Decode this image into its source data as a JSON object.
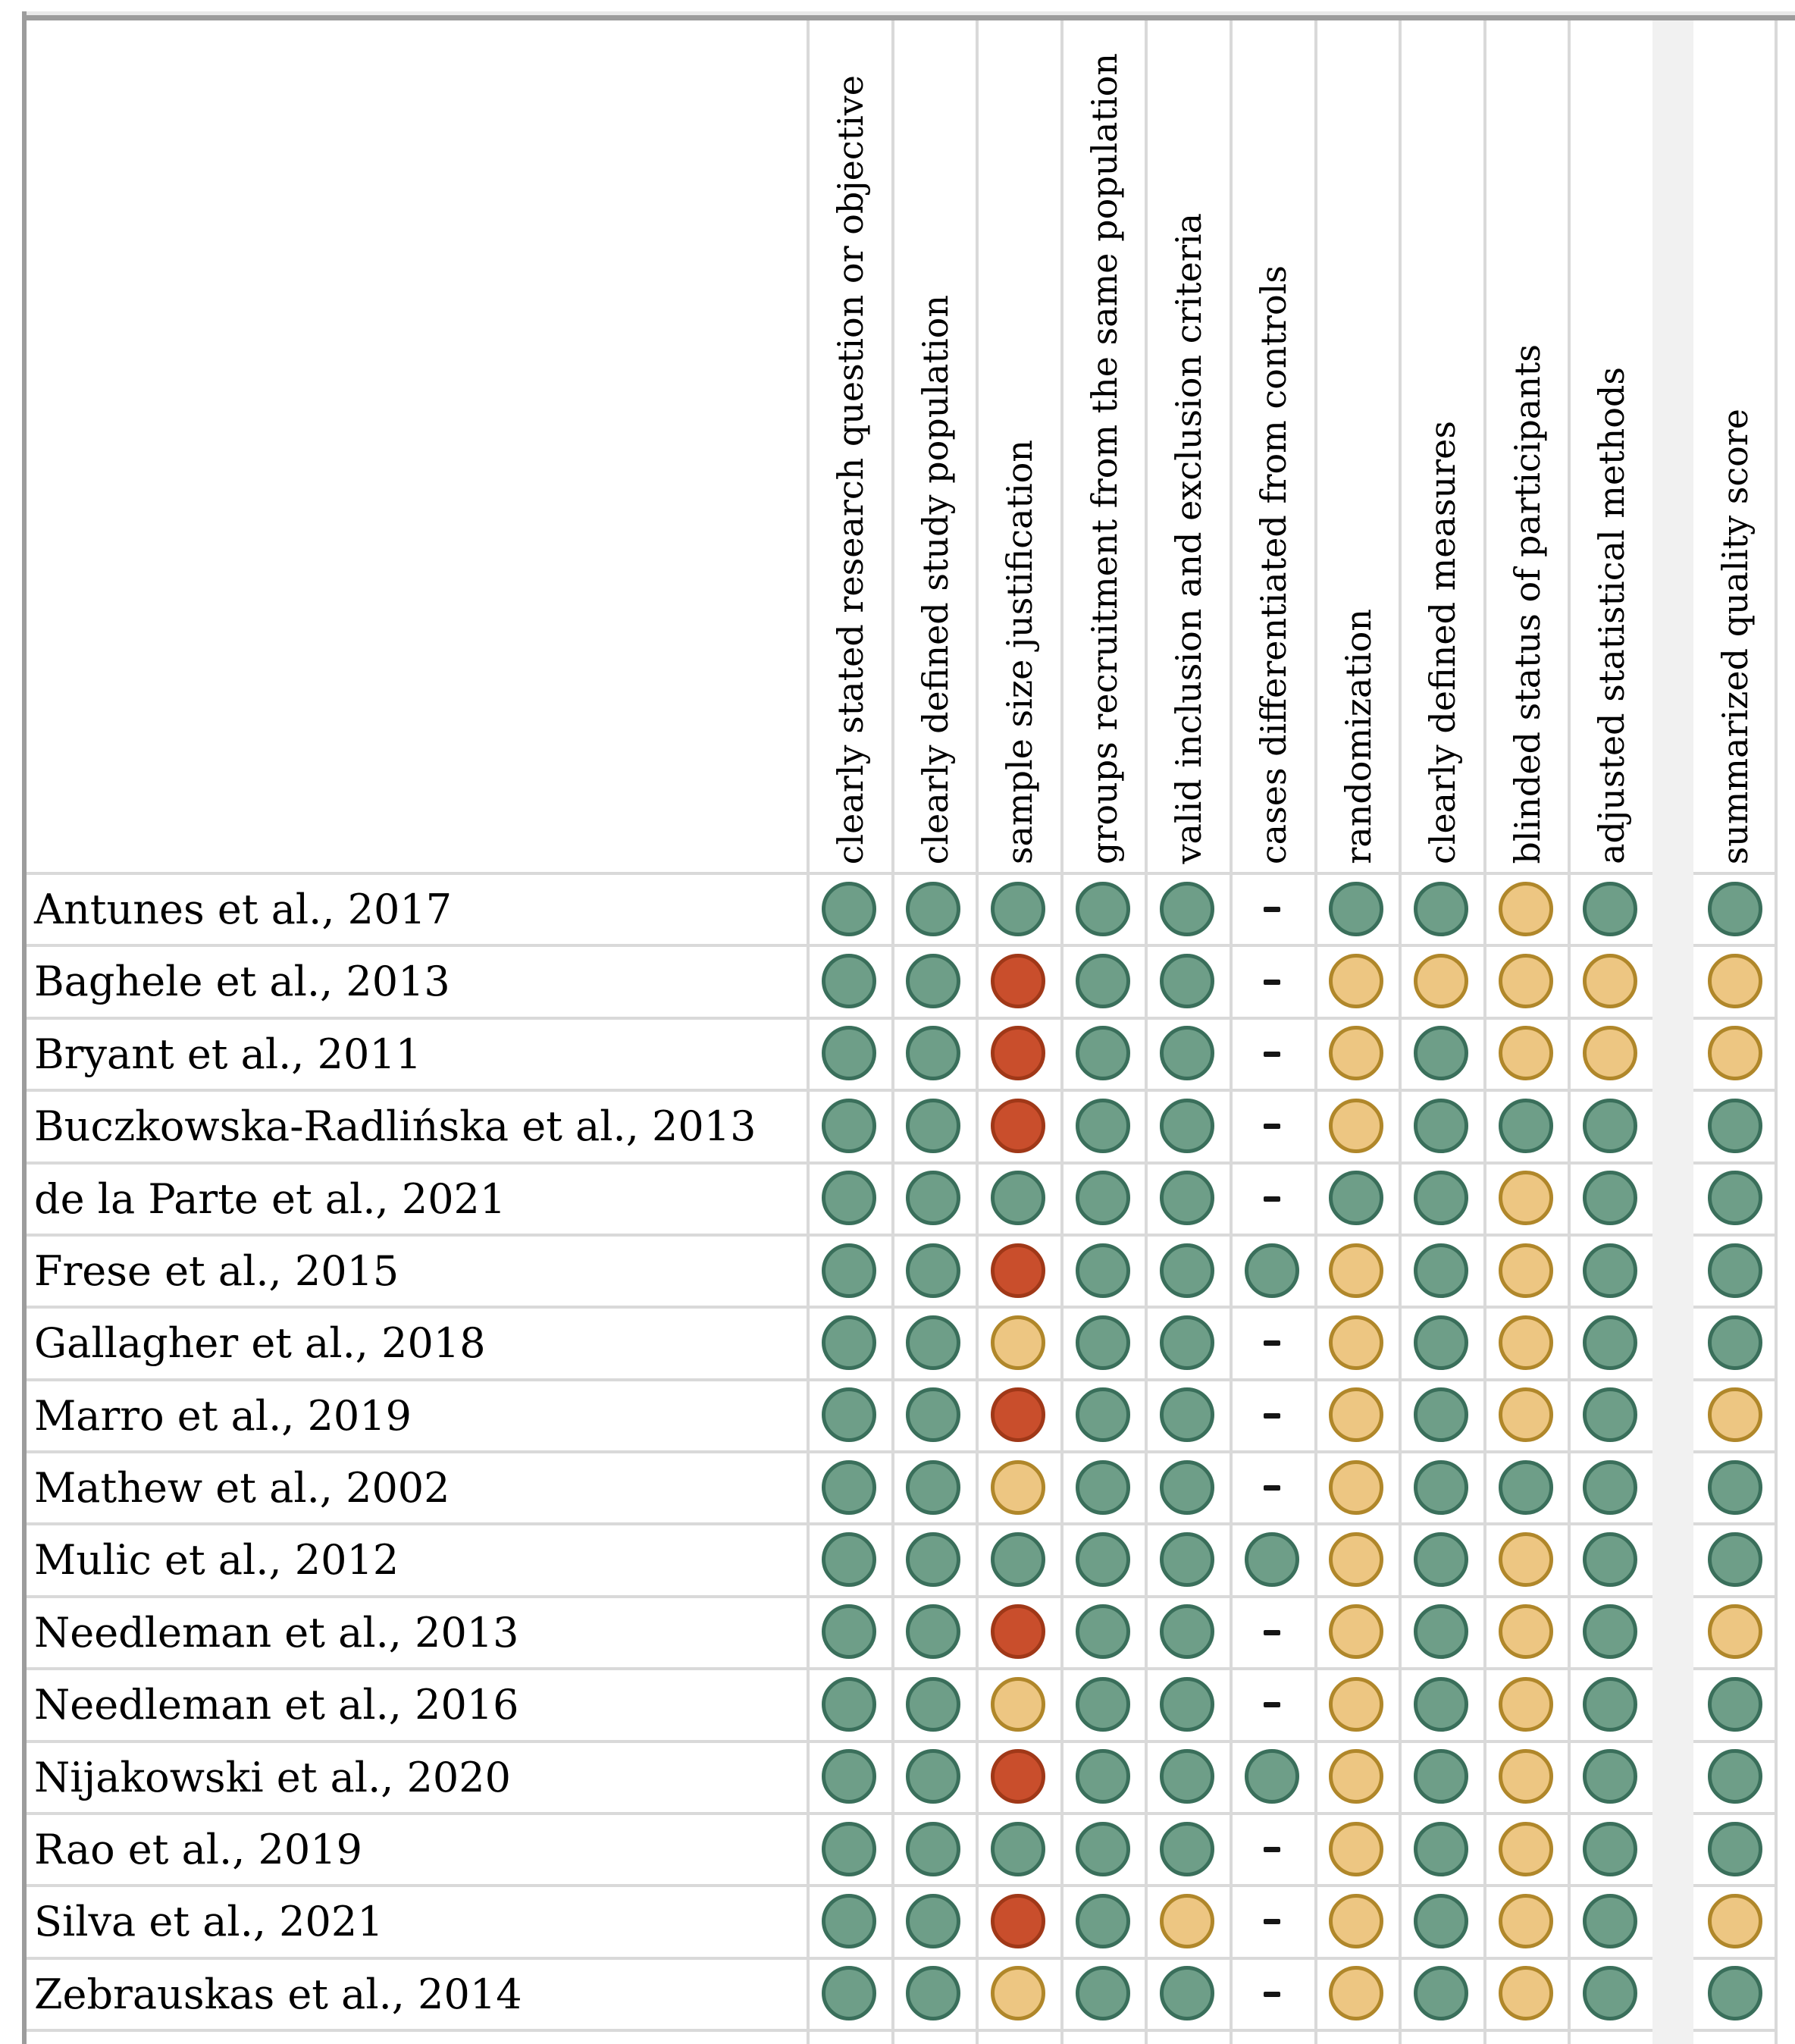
{
  "chart_data": {
    "type": "heatmap",
    "description": "Study quality assessment matrix with colored dots (green / orange / red) and dashes for non-applicable items",
    "columns": [
      "clearly stated research question or objective",
      "clearly defined study population",
      "sample size justification",
      "groups recruitment from the same population",
      "valid inclusion and exclusion criteria",
      "cases differentiated from controls",
      "randomization",
      "clearly defined measures",
      "blinded status of participants",
      "adjusted statistical methods"
    ],
    "score_column": "summarized quality score",
    "dash_symbol": "-",
    "cell_colors": {
      "green": {
        "fill": "#6E9E88",
        "border": "#3A6F5B"
      },
      "orange": {
        "fill": "#EDC682",
        "border": "#B0872A"
      },
      "red": {
        "fill": "#C94E2C",
        "border": "#A03818"
      },
      "dash": {
        "color": "#151515"
      }
    },
    "rows": [
      {
        "study": "Antunes et al., 2017",
        "values": [
          "green",
          "green",
          "green",
          "green",
          "green",
          "-",
          "green",
          "green",
          "orange",
          "green"
        ],
        "score": "green"
      },
      {
        "study": "Baghele et al., 2013",
        "values": [
          "green",
          "green",
          "red",
          "green",
          "green",
          "-",
          "orange",
          "orange",
          "orange",
          "orange"
        ],
        "score": "orange"
      },
      {
        "study": "Bryant et al., 2011",
        "values": [
          "green",
          "green",
          "red",
          "green",
          "green",
          "-",
          "orange",
          "green",
          "orange",
          "orange"
        ],
        "score": "orange"
      },
      {
        "study": "Buczkowska-Radlińska et al., 2013",
        "values": [
          "green",
          "green",
          "red",
          "green",
          "green",
          "-",
          "orange",
          "green",
          "green",
          "green"
        ],
        "score": "green"
      },
      {
        "study": "de la Parte et al., 2021",
        "values": [
          "green",
          "green",
          "green",
          "green",
          "green",
          "-",
          "green",
          "green",
          "orange",
          "green"
        ],
        "score": "green"
      },
      {
        "study": "Frese et al., 2015",
        "values": [
          "green",
          "green",
          "red",
          "green",
          "green",
          "green",
          "orange",
          "green",
          "orange",
          "green"
        ],
        "score": "green"
      },
      {
        "study": "Gallagher et al., 2018",
        "values": [
          "green",
          "green",
          "orange",
          "green",
          "green",
          "-",
          "orange",
          "green",
          "orange",
          "green"
        ],
        "score": "green"
      },
      {
        "study": "Marro et al., 2019",
        "values": [
          "green",
          "green",
          "red",
          "green",
          "green",
          "-",
          "orange",
          "green",
          "orange",
          "green"
        ],
        "score": "orange"
      },
      {
        "study": "Mathew et al., 2002",
        "values": [
          "green",
          "green",
          "orange",
          "green",
          "green",
          "-",
          "orange",
          "green",
          "green",
          "green"
        ],
        "score": "green"
      },
      {
        "study": "Mulic et al., 2012",
        "values": [
          "green",
          "green",
          "green",
          "green",
          "green",
          "green",
          "orange",
          "green",
          "orange",
          "green"
        ],
        "score": "green"
      },
      {
        "study": "Needleman et al., 2013",
        "values": [
          "green",
          "green",
          "red",
          "green",
          "green",
          "-",
          "orange",
          "green",
          "orange",
          "green"
        ],
        "score": "orange"
      },
      {
        "study": "Needleman et al., 2016",
        "values": [
          "green",
          "green",
          "orange",
          "green",
          "green",
          "-",
          "orange",
          "green",
          "orange",
          "green"
        ],
        "score": "green"
      },
      {
        "study": "Nijakowski et al., 2020",
        "values": [
          "green",
          "green",
          "red",
          "green",
          "green",
          "green",
          "orange",
          "green",
          "orange",
          "green"
        ],
        "score": "green"
      },
      {
        "study": "Rao et al., 2019",
        "values": [
          "green",
          "green",
          "green",
          "green",
          "green",
          "-",
          "orange",
          "green",
          "orange",
          "green"
        ],
        "score": "green"
      },
      {
        "study": "Silva et al., 2021",
        "values": [
          "green",
          "green",
          "red",
          "green",
          "orange",
          "-",
          "orange",
          "green",
          "orange",
          "green"
        ],
        "score": "orange"
      },
      {
        "study": "Zebrauskas et al., 2014",
        "values": [
          "green",
          "green",
          "orange",
          "green",
          "green",
          "-",
          "orange",
          "green",
          "orange",
          "green"
        ],
        "score": "green"
      }
    ]
  }
}
